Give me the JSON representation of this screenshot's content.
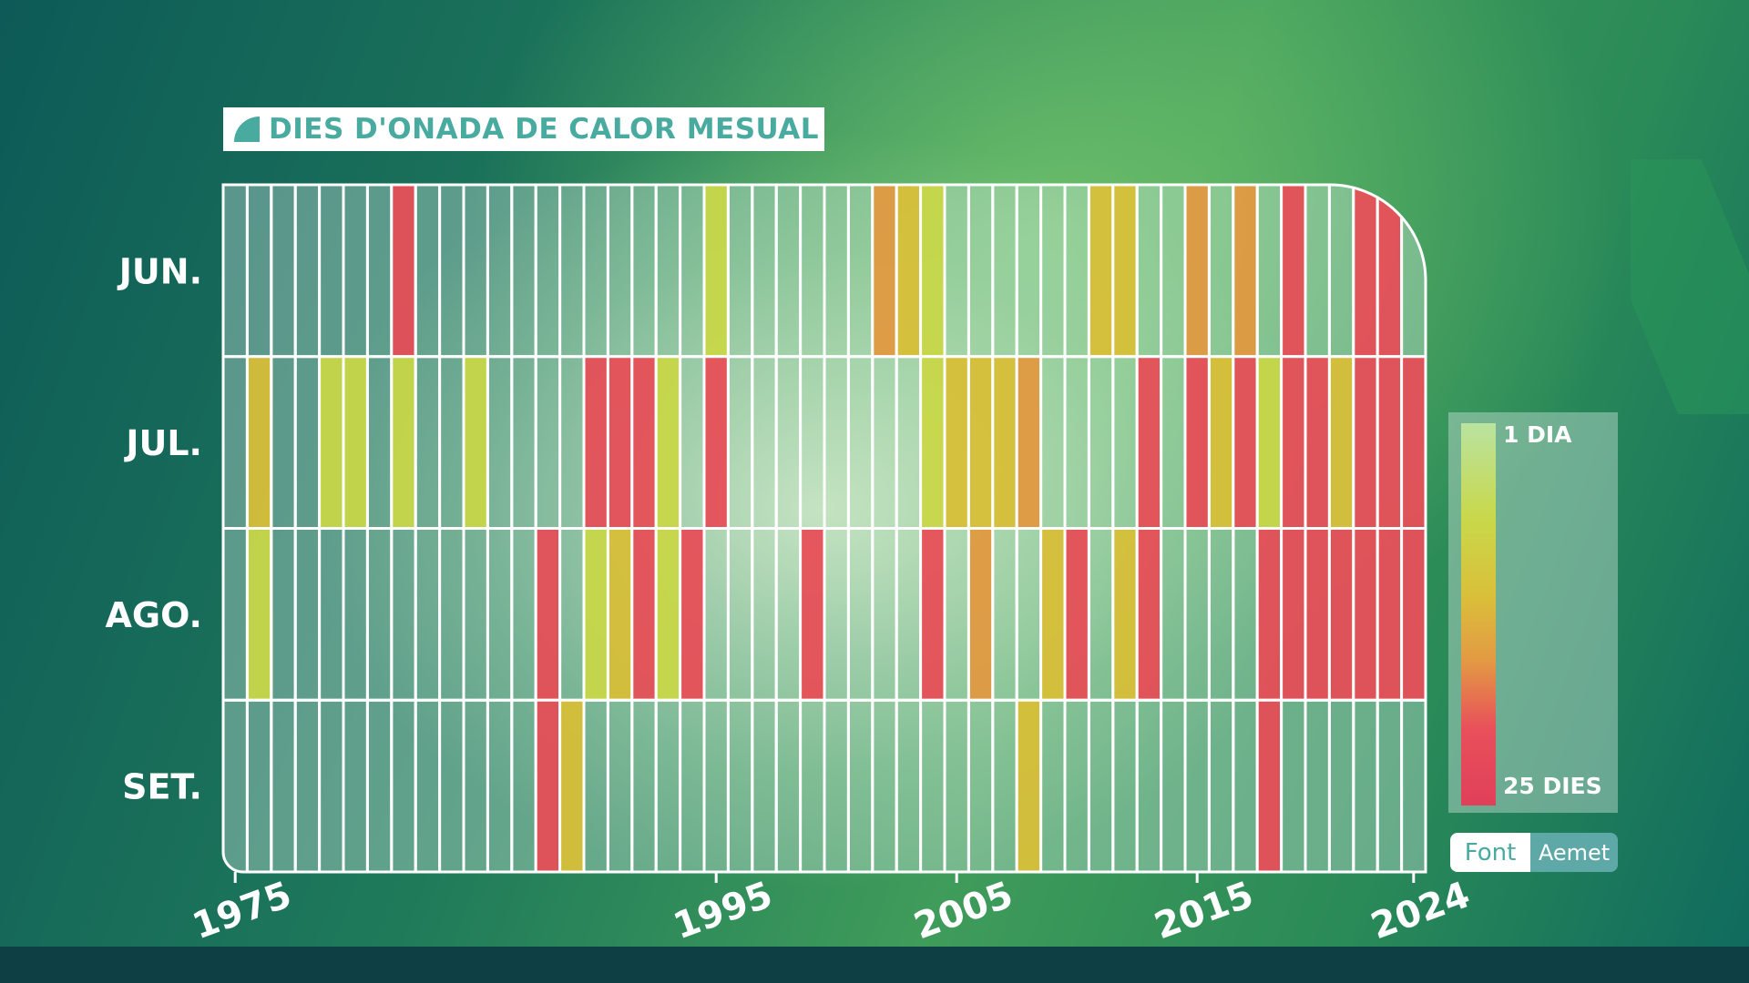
{
  "chart_data": {
    "type": "heatmap",
    "title": "DIES D'ONADA DE CALOR MESUAL",
    "rows": [
      "JUN.",
      "JUL.",
      "AGO.",
      "SET."
    ],
    "year_start": 1975,
    "year_end": 2024,
    "tick_years": [
      "1975",
      "1995",
      "2005",
      "2015",
      "2024"
    ],
    "legend": {
      "min_label": "1 DIA",
      "max_label": "25 DIES",
      "min": 1,
      "max": 25
    },
    "cells": [
      [
        0,
        0,
        0,
        0,
        0,
        0,
        0,
        15,
        0,
        0,
        0,
        0,
        0,
        0,
        0,
        0,
        0,
        0,
        0,
        0,
        4,
        0,
        0,
        0,
        0,
        0,
        0,
        11,
        9,
        5,
        0,
        0,
        0,
        0,
        0,
        0,
        9,
        10,
        0,
        0,
        11,
        0,
        13,
        0,
        15,
        0,
        0,
        16,
        15,
        0
      ],
      [
        0,
        8,
        0,
        0,
        5,
        5,
        0,
        5,
        0,
        0,
        5,
        0,
        0,
        0,
        0,
        15,
        15,
        15,
        5,
        0,
        15,
        0,
        0,
        0,
        0,
        0,
        0,
        0,
        0,
        5,
        10,
        10,
        9,
        11,
        0,
        0,
        0,
        0,
        15,
        0,
        17,
        10,
        15,
        5,
        15,
        16,
        9,
        16,
        15,
        17
      ],
      [
        0,
        4,
        0,
        0,
        0,
        0,
        0,
        0,
        0,
        0,
        0,
        0,
        0,
        15,
        0,
        5,
        9,
        17,
        5,
        15,
        0,
        0,
        0,
        0,
        15,
        0,
        0,
        0,
        0,
        17,
        0,
        11,
        0,
        0,
        9,
        15,
        0,
        9,
        17,
        0,
        0,
        0,
        0,
        15,
        15,
        15,
        16,
        16,
        17,
        17
      ],
      [
        0,
        0,
        0,
        0,
        0,
        0,
        0,
        0,
        0,
        0,
        0,
        0,
        0,
        15,
        9,
        0,
        0,
        0,
        0,
        0,
        0,
        0,
        0,
        0,
        0,
        0,
        0,
        0,
        0,
        0,
        0,
        0,
        0,
        8,
        0,
        0,
        0,
        0,
        0,
        0,
        0,
        0,
        0,
        15,
        0,
        0,
        0,
        0,
        0,
        0
      ]
    ]
  },
  "source": {
    "label": "Font",
    "name": "Aemet"
  },
  "colors": {
    "accent": "#49aaa0",
    "scale": [
      "#b9e3a0",
      "#c9d84a",
      "#d9c03a",
      "#e39a43",
      "#e8505a",
      "#e0405a",
      "#b83a4d"
    ],
    "empty_cell": "#dcefe8",
    "grid": "#ffffff"
  }
}
